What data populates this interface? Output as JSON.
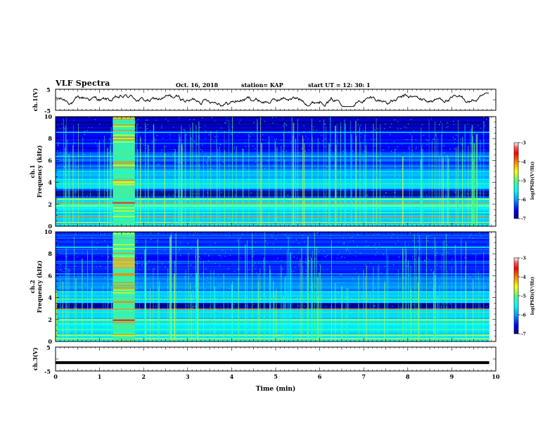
{
  "header": {
    "title": "VLF Spectra",
    "date": "Oct. 16, 2018",
    "station": "station= KAP",
    "start": "start UT = 12: 30: 1"
  },
  "colors": {
    "spectrogram_scale": [
      "#00007f",
      "#0000ff",
      "#00a0ff",
      "#00ffff",
      "#55ff80",
      "#ffff00",
      "#ff8000",
      "#ff0000",
      "#ff6060",
      "#ffffff"
    ],
    "trace": "#000000"
  },
  "chart_data": [
    {
      "type": "line",
      "id": "ch1-waveform",
      "ylabel": "ch.1(V)",
      "ylim": [
        -5,
        5
      ],
      "yticks": [
        "5",
        "-5"
      ],
      "xlim": [
        0,
        10
      ],
      "x_end": 9.85,
      "description_values": "noisy trace hovering near 0 V, roughly -2 to +2 V"
    },
    {
      "type": "heatmap",
      "id": "ch1-spectrogram",
      "ylabel_lines": [
        "ch.1",
        "Frequency (kHz)"
      ],
      "ylim": [
        0,
        10
      ],
      "yticks": [
        "0",
        "2",
        "4",
        "6",
        "8",
        "10"
      ],
      "xlim": [
        0,
        10
      ],
      "x_end": 9.85,
      "burst_interval_min": [
        1.3,
        1.8
      ],
      "colorbar": {
        "label": "log(PSD)(V²/Hz)",
        "range": [
          -7,
          -3
        ],
        "ticks": [
          "-3",
          "-4",
          "-5",
          "-6",
          "-7"
        ]
      }
    },
    {
      "type": "heatmap",
      "id": "ch2-spectrogram",
      "ylabel_lines": [
        "ch.2",
        "Frequency (kHz)"
      ],
      "ylim": [
        0,
        10
      ],
      "yticks": [
        "0",
        "2",
        "4",
        "6",
        "8",
        "10"
      ],
      "xlim": [
        0,
        10
      ],
      "x_end": 9.85,
      "burst_interval_min": [
        1.3,
        1.8
      ],
      "colorbar": {
        "label": "log(PSD)(V²/Hz)",
        "range": [
          -7,
          -3
        ],
        "ticks": [
          "-3",
          "-4",
          "-5",
          "-6",
          "-7"
        ]
      }
    },
    {
      "type": "line",
      "id": "ch3-waveform",
      "ylabel": "ch.3(V)",
      "ylim": [
        -5,
        5
      ],
      "yticks": [
        "5",
        "-5"
      ],
      "xlim": [
        0,
        10
      ],
      "x_end": 9.85,
      "constant_value": -1.5
    }
  ],
  "xaxis": {
    "label": "Time (min)",
    "ticks": [
      "0",
      "1",
      "2",
      "3",
      "4",
      "5",
      "6",
      "7",
      "8",
      "9",
      "10"
    ]
  }
}
